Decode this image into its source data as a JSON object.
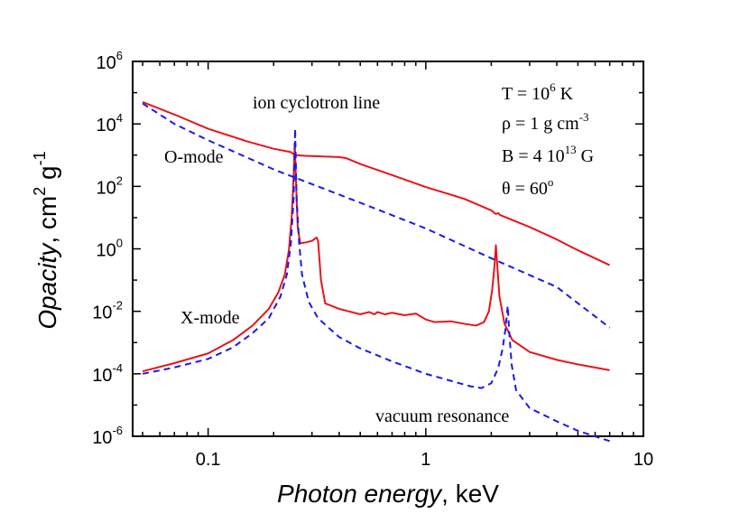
{
  "chart_data": {
    "type": "line",
    "x_scale": "log",
    "y_scale": "log",
    "xlim": [
      0.045,
      10
    ],
    "ylim": [
      1e-06,
      1000000.0
    ],
    "grid": false,
    "xlabel": {
      "italic": "Photon energy",
      "rest": ", keV"
    },
    "ylabel": {
      "italic": "Opacity",
      "rest": ",  cm",
      "sup1": "2",
      "mid": " g",
      "sup2": "-1"
    },
    "x_ticks": [
      {
        "value": 0.1,
        "label": "0.1"
      },
      {
        "value": 1,
        "label": "1"
      },
      {
        "value": 10,
        "label": "10"
      }
    ],
    "y_ticks": [
      {
        "value": 1e-06,
        "base": "10",
        "exp": "-6"
      },
      {
        "value": 0.0001,
        "base": "10",
        "exp": "-4"
      },
      {
        "value": 0.01,
        "base": "10",
        "exp": "-2"
      },
      {
        "value": 1,
        "base": "10",
        "exp": "0"
      },
      {
        "value": 100.0,
        "base": "10",
        "exp": "2"
      },
      {
        "value": 10000.0,
        "base": "10",
        "exp": "4"
      },
      {
        "value": 1000000.0,
        "base": "10",
        "exp": "6"
      }
    ],
    "series": [
      {
        "color": "#e8141b",
        "dash": "solid",
        "points": [
          [
            0.05,
            50000
          ],
          [
            0.07,
            20000
          ],
          [
            0.1,
            7000
          ],
          [
            0.15,
            2800
          ],
          [
            0.2,
            1600
          ],
          [
            0.24,
            1250
          ],
          [
            0.25,
            1000
          ],
          [
            0.28,
            950
          ],
          [
            0.35,
            900
          ],
          [
            0.4,
            870
          ],
          [
            0.43,
            800
          ],
          [
            0.5,
            520
          ],
          [
            0.7,
            230
          ],
          [
            1,
            95
          ],
          [
            1.5,
            40
          ],
          [
            2,
            17
          ],
          [
            2.1,
            13
          ],
          [
            2.15,
            14
          ],
          [
            2.2,
            12
          ],
          [
            3,
            5
          ],
          [
            4,
            2
          ],
          [
            5,
            0.9
          ],
          [
            7,
            0.3
          ]
        ]
      },
      {
        "color": "#e8141b",
        "dash": "solid",
        "points": [
          [
            0.05,
            0.00012
          ],
          [
            0.07,
            0.00022
          ],
          [
            0.1,
            0.00045
          ],
          [
            0.13,
            0.0012
          ],
          [
            0.16,
            0.0035
          ],
          [
            0.19,
            0.012
          ],
          [
            0.21,
            0.04
          ],
          [
            0.225,
            0.15
          ],
          [
            0.235,
            0.9
          ],
          [
            0.242,
            10
          ],
          [
            0.247,
            200
          ],
          [
            0.25,
            2500
          ],
          [
            0.253,
            200
          ],
          [
            0.258,
            5
          ],
          [
            0.265,
            1.5
          ],
          [
            0.28,
            1.6
          ],
          [
            0.3,
            1.8
          ],
          [
            0.315,
            2.3
          ],
          [
            0.32,
            1.8
          ],
          [
            0.33,
            0.1
          ],
          [
            0.345,
            0.018
          ],
          [
            0.4,
            0.012
          ],
          [
            0.5,
            0.008
          ],
          [
            0.55,
            0.0095
          ],
          [
            0.58,
            0.008
          ],
          [
            0.6,
            0.0095
          ],
          [
            0.65,
            0.008
          ],
          [
            0.7,
            0.009
          ],
          [
            0.8,
            0.0075
          ],
          [
            0.9,
            0.0085
          ],
          [
            1,
            0.0055
          ],
          [
            1.1,
            0.0045
          ],
          [
            1.3,
            0.0048
          ],
          [
            1.5,
            0.004
          ],
          [
            1.7,
            0.0035
          ],
          [
            1.85,
            0.0045
          ],
          [
            1.95,
            0.01
          ],
          [
            2.02,
            0.05
          ],
          [
            2.07,
            0.3
          ],
          [
            2.1,
            1.3
          ],
          [
            2.13,
            0.3
          ],
          [
            2.18,
            0.03
          ],
          [
            2.3,
            0.004
          ],
          [
            2.5,
            0.0012
          ],
          [
            3,
            0.0005
          ],
          [
            4,
            0.00028
          ],
          [
            5,
            0.0002
          ],
          [
            7,
            0.00013
          ]
        ]
      },
      {
        "color": "#1a1ae6",
        "dash": "dashed",
        "points": [
          [
            0.05,
            45000
          ],
          [
            0.07,
            10000
          ],
          [
            0.1,
            3000
          ],
          [
            0.2,
            350
          ],
          [
            0.5,
            30
          ],
          [
            1,
            4.5
          ],
          [
            2,
            0.5
          ],
          [
            4,
            0.06
          ],
          [
            7,
            0.003
          ]
        ]
      },
      {
        "color": "#1a1ae6",
        "dash": "dashed",
        "points": [
          [
            0.05,
            0.0001
          ],
          [
            0.07,
            0.00016
          ],
          [
            0.1,
            0.0003
          ],
          [
            0.13,
            0.0007
          ],
          [
            0.16,
            0.002
          ],
          [
            0.19,
            0.006
          ],
          [
            0.215,
            0.03
          ],
          [
            0.23,
            0.15
          ],
          [
            0.24,
            1.5
          ],
          [
            0.247,
            40
          ],
          [
            0.251,
            7000
          ],
          [
            0.255,
            40
          ],
          [
            0.262,
            1.5
          ],
          [
            0.27,
            0.15
          ],
          [
            0.29,
            0.02
          ],
          [
            0.32,
            0.006
          ],
          [
            0.4,
            0.0015
          ],
          [
            0.5,
            0.00065
          ],
          [
            0.7,
            0.00025
          ],
          [
            1,
            0.0001
          ],
          [
            1.3,
            6e-05
          ],
          [
            1.6,
            4e-05
          ],
          [
            1.8,
            3.5e-05
          ],
          [
            2,
            5e-05
          ],
          [
            2.15,
            0.00015
          ],
          [
            2.25,
            0.0006
          ],
          [
            2.32,
            0.0025
          ],
          [
            2.38,
            0.015
          ],
          [
            2.42,
            0.002
          ],
          [
            2.48,
            0.0002
          ],
          [
            2.6,
            3e-05
          ],
          [
            3,
            8e-06
          ],
          [
            4,
            3e-06
          ],
          [
            5,
            1.5e-06
          ],
          [
            7,
            7e-07
          ]
        ]
      }
    ],
    "annotations": {
      "ion_line": "ion cyclotron line",
      "omode": "O-mode",
      "xmode": "X-mode",
      "vacuum": "vacuum resonance",
      "T": {
        "pre": "T  = 10",
        "sup": "6",
        "post": " K"
      },
      "rho": {
        "pre": "ρ  = 1  g cm",
        "sup": "-3",
        "post": ""
      },
      "B": {
        "pre": "B  = 4 10",
        "sup": "13",
        "post": " G"
      },
      "theta": {
        "pre": "θ   = 60",
        "sup": "o",
        "post": ""
      }
    }
  }
}
